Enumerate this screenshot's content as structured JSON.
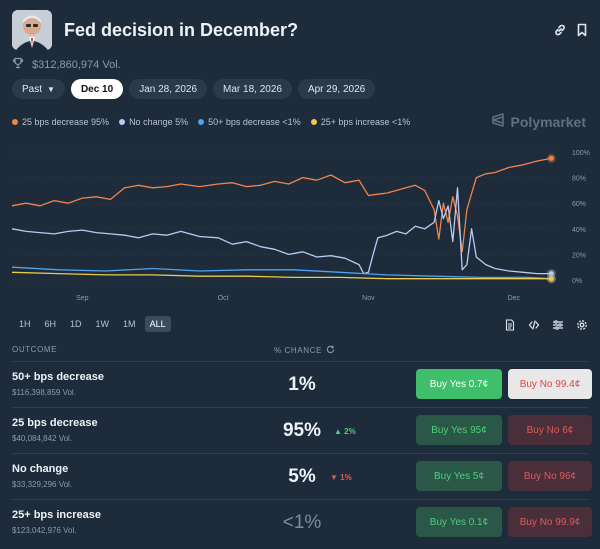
{
  "market": {
    "title": "Fed decision in December?",
    "volume": "$312,860,974 Vol."
  },
  "date_tabs": [
    "Past",
    "Dec 10",
    "Jan 28, 2026",
    "Mar 18, 2026",
    "Apr 29, 2026"
  ],
  "brand": "Polymarket",
  "range_tabs": [
    "1H",
    "6H",
    "1D",
    "1W",
    "1M",
    "ALL"
  ],
  "table_headers": {
    "outcome": "OUTCOME",
    "chance": "% CHANCE"
  },
  "outcomes": [
    {
      "name": "50+ bps decrease",
      "volume": "$116,398,859 Vol.",
      "chance": "1%",
      "change": "",
      "yes": "Buy Yes 0.7¢",
      "no": "Buy No 99.4¢"
    },
    {
      "name": "25 bps decrease",
      "volume": "$40,084,842 Vol.",
      "chance": "95%",
      "change": "▲ 2%",
      "yes": "Buy Yes 95¢",
      "no": "Buy No 6¢"
    },
    {
      "name": "No change",
      "volume": "$33,329,296 Vol.",
      "chance": "5%",
      "change": "▼ 1%",
      "yes": "Buy Yes 5¢",
      "no": "Buy No 96¢"
    },
    {
      "name": "25+ bps increase",
      "volume": "$123,042,976 Vol.",
      "chance": "<1%",
      "change": "",
      "yes": "Buy Yes 0.1¢",
      "no": "Buy No 99.9¢"
    }
  ],
  "colors": {
    "s25": "#f0844a",
    "nochange": "#b9cbf2",
    "s50": "#4ea3f2",
    "inc": "#eacb4c",
    "grid": "#2f3f51",
    "axis": "#8b9bab"
  },
  "chart_data": {
    "type": "line",
    "title": "Fed decision in December?",
    "xlabel": "",
    "ylabel": "",
    "ylim": [
      0,
      100
    ],
    "y_ticks": [
      0,
      20,
      40,
      60,
      80,
      100
    ],
    "y_tick_labels": [
      "0%",
      "20%",
      "40%",
      "60%",
      "80%",
      "100%"
    ],
    "x_tick_labels": [
      "Sep",
      "Oct",
      "Nov",
      "Dec"
    ],
    "x_tick_positions": [
      15,
      45,
      76,
      107
    ],
    "x_range": [
      0,
      116
    ],
    "series": [
      {
        "name": "25 bps decrease 95%",
        "color": "#f0844a",
        "x": [
          0,
          3,
          6,
          9,
          12,
          15,
          18,
          21,
          24,
          27,
          30,
          33,
          36,
          40,
          44,
          47,
          50,
          53,
          56,
          59,
          62,
          65,
          68,
          71,
          74,
          76,
          78,
          80,
          82,
          84,
          86,
          88,
          90,
          91,
          92,
          93,
          94,
          95,
          96,
          97,
          99,
          101,
          103,
          106,
          109,
          112,
          115
        ],
        "y": [
          58,
          60,
          58,
          62,
          60,
          64,
          65,
          63,
          72,
          74,
          72,
          73,
          75,
          73,
          75,
          76,
          73,
          74,
          77,
          75,
          80,
          78,
          82,
          76,
          78,
          66,
          67,
          68,
          70,
          72,
          74,
          70,
          55,
          32,
          60,
          45,
          65,
          50,
          22,
          55,
          80,
          83,
          84,
          88,
          90,
          93,
          95
        ]
      },
      {
        "name": "No change 5%",
        "color": "#b9cbf2",
        "x": [
          0,
          3,
          6,
          9,
          12,
          15,
          18,
          21,
          24,
          27,
          30,
          33,
          36,
          40,
          44,
          47,
          50,
          53,
          56,
          59,
          62,
          65,
          68,
          71,
          74,
          75,
          76,
          77,
          78,
          80,
          82,
          84,
          86,
          88,
          90,
          91,
          92,
          93,
          94,
          95,
          96,
          97,
          98,
          99,
          101,
          103,
          106,
          109,
          112,
          115
        ],
        "y": [
          40,
          38,
          37,
          36,
          38,
          39,
          37,
          36,
          35,
          33,
          36,
          35,
          38,
          34,
          33,
          28,
          30,
          26,
          24,
          20,
          22,
          18,
          19,
          17,
          12,
          5,
          6,
          20,
          33,
          35,
          38,
          36,
          42,
          40,
          45,
          62,
          48,
          58,
          30,
          72,
          8,
          12,
          40,
          18,
          12,
          9,
          7,
          6,
          5,
          5
        ]
      },
      {
        "name": "50+ bps decrease <1%",
        "color": "#4ea3f2",
        "x": [
          0,
          10,
          20,
          30,
          40,
          50,
          60,
          70,
          80,
          90,
          100,
          110,
          115
        ],
        "y": [
          10,
          8,
          7,
          9,
          7,
          8,
          8,
          6,
          4,
          3,
          2,
          2,
          1
        ]
      },
      {
        "name": "25+ bps increase <1%",
        "color": "#eacb4c",
        "x": [
          0,
          10,
          20,
          30,
          40,
          50,
          60,
          70,
          80,
          90,
          100,
          110,
          115
        ],
        "y": [
          6,
          5,
          4,
          4,
          3,
          3,
          2,
          2,
          1,
          1,
          1,
          1,
          1
        ]
      }
    ]
  }
}
